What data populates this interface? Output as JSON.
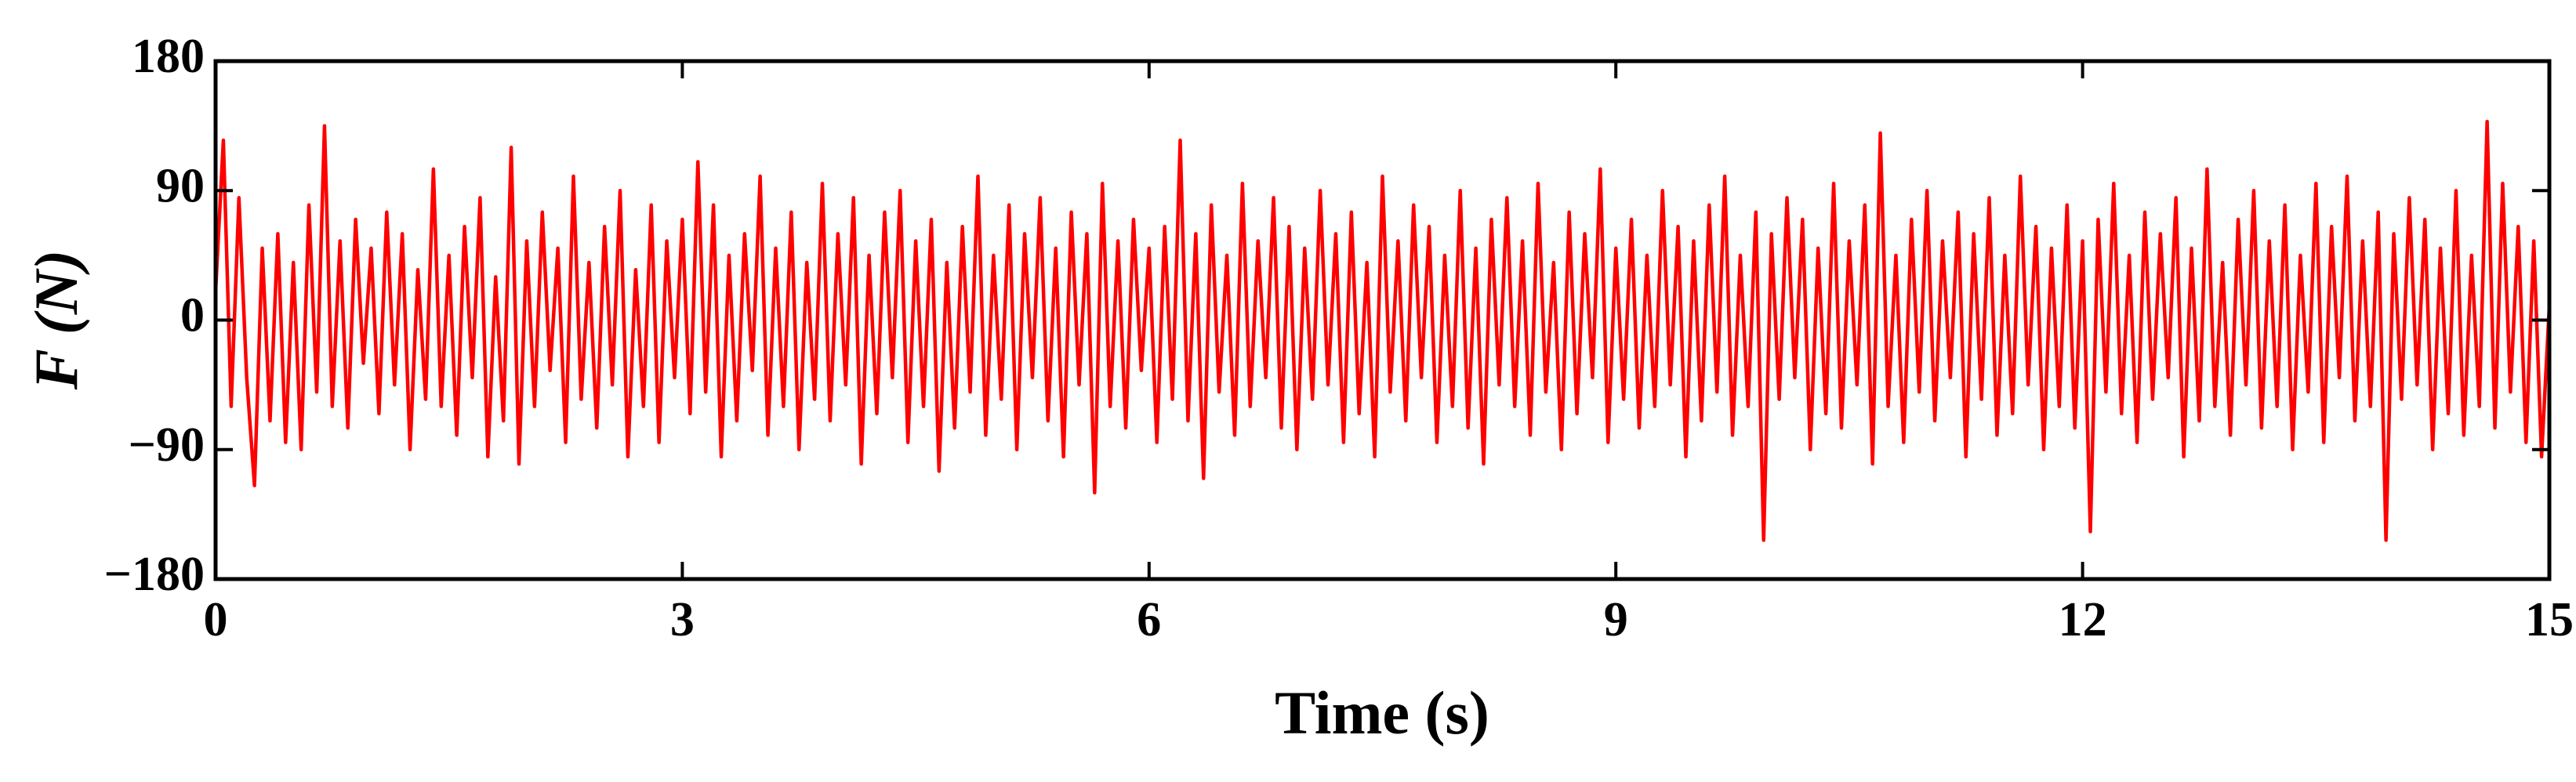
{
  "chart_data": {
    "type": "line",
    "xlabel": "Time (s)",
    "ylabel": "F (N)",
    "x": [
      0,
      0.05,
      0.1,
      0.15,
      0.2,
      0.25,
      0.3,
      0.35,
      0.4,
      0.45,
      0.5,
      0.55,
      0.6,
      0.65,
      0.7,
      0.75,
      0.8,
      0.85,
      0.9,
      0.95,
      1,
      1.05,
      1.1,
      1.15,
      1.2,
      1.25,
      1.3,
      1.35,
      1.4,
      1.45,
      1.5,
      1.55,
      1.6,
      1.65,
      1.7,
      1.75,
      1.8,
      1.85,
      1.9,
      1.95,
      2,
      2.05,
      2.1,
      2.15,
      2.2,
      2.25,
      2.3,
      2.35,
      2.4,
      2.45,
      2.5,
      2.55,
      2.6,
      2.65,
      2.7,
      2.75,
      2.8,
      2.85,
      2.9,
      2.95,
      3,
      3.05,
      3.1,
      3.15,
      3.2,
      3.25,
      3.3,
      3.35,
      3.4,
      3.45,
      3.5,
      3.55,
      3.6,
      3.65,
      3.7,
      3.75,
      3.8,
      3.85,
      3.9,
      3.95,
      4,
      4.05,
      4.1,
      4.15,
      4.2,
      4.25,
      4.3,
      4.35,
      4.4,
      4.45,
      4.5,
      4.55,
      4.6,
      4.65,
      4.7,
      4.75,
      4.8,
      4.85,
      4.9,
      4.95,
      5,
      5.05,
      5.1,
      5.15,
      5.2,
      5.25,
      5.3,
      5.35,
      5.4,
      5.45,
      5.5,
      5.55,
      5.6,
      5.65,
      5.7,
      5.75,
      5.8,
      5.85,
      5.9,
      5.95,
      6,
      6.05,
      6.1,
      6.15,
      6.2,
      6.25,
      6.3,
      6.35,
      6.4,
      6.45,
      6.5,
      6.55,
      6.6,
      6.65,
      6.7,
      6.75,
      6.8,
      6.85,
      6.9,
      6.95,
      7,
      7.05,
      7.1,
      7.15,
      7.2,
      7.25,
      7.3,
      7.35,
      7.4,
      7.45,
      7.5,
      7.55,
      7.6,
      7.65,
      7.7,
      7.75,
      7.8,
      7.85,
      7.9,
      7.95,
      8,
      8.05,
      8.1,
      8.15,
      8.2,
      8.25,
      8.3,
      8.35,
      8.4,
      8.45,
      8.5,
      8.55,
      8.6,
      8.65,
      8.7,
      8.75,
      8.8,
      8.85,
      8.9,
      8.95,
      9,
      9.05,
      9.1,
      9.15,
      9.2,
      9.25,
      9.3,
      9.35,
      9.4,
      9.45,
      9.5,
      9.55,
      9.6,
      9.65,
      9.7,
      9.75,
      9.8,
      9.85,
      9.9,
      9.95,
      10,
      10.05,
      10.1,
      10.15,
      10.2,
      10.25,
      10.3,
      10.35,
      10.4,
      10.45,
      10.5,
      10.55,
      10.6,
      10.65,
      10.7,
      10.75,
      10.8,
      10.85,
      10.9,
      10.95,
      11,
      11.05,
      11.1,
      11.15,
      11.2,
      11.25,
      11.3,
      11.35,
      11.4,
      11.45,
      11.5,
      11.55,
      11.6,
      11.65,
      11.7,
      11.75,
      11.8,
      11.85,
      11.9,
      11.95,
      12,
      12.05,
      12.1,
      12.15,
      12.2,
      12.25,
      12.3,
      12.35,
      12.4,
      12.45,
      12.5,
      12.55,
      12.6,
      12.65,
      12.7,
      12.75,
      12.8,
      12.85,
      12.9,
      12.95,
      13,
      13.05,
      13.1,
      13.15,
      13.2,
      13.25,
      13.3,
      13.35,
      13.4,
      13.45,
      13.5,
      13.55,
      13.6,
      13.65,
      13.7,
      13.75,
      13.8,
      13.85,
      13.9,
      13.95,
      14,
      14.05,
      14.1,
      14.15,
      14.2,
      14.25,
      14.3,
      14.35,
      14.4,
      14.45,
      14.5,
      14.55,
      14.6,
      14.65,
      14.7,
      14.75,
      14.8,
      14.85,
      14.9,
      14.95,
      15
    ],
    "series": [
      {
        "color": "#ff0000",
        "values": [
          20,
          125,
          -60,
          85,
          -40,
          -115,
          50,
          -70,
          60,
          -85,
          40,
          -90,
          80,
          -50,
          135,
          -60,
          55,
          -75,
          70,
          -30,
          50,
          -65,
          75,
          -45,
          60,
          -90,
          35,
          -55,
          105,
          -60,
          45,
          -80,
          65,
          -40,
          85,
          -95,
          30,
          -70,
          120,
          -100,
          55,
          -60,
          75,
          -35,
          50,
          -85,
          100,
          -55,
          40,
          -75,
          65,
          -45,
          90,
          -95,
          35,
          -60,
          80,
          -85,
          55,
          -40,
          70,
          -65,
          110,
          -50,
          80,
          -95,
          45,
          -70,
          60,
          -35,
          100,
          -80,
          50,
          -60,
          75,
          -90,
          40,
          -55,
          95,
          -70,
          60,
          -45,
          85,
          -100,
          45,
          -65,
          75,
          -40,
          90,
          -85,
          55,
          -60,
          70,
          -105,
          40,
          -75,
          65,
          -50,
          100,
          -80,
          45,
          -55,
          80,
          -90,
          60,
          -40,
          85,
          -70,
          50,
          -95,
          75,
          -45,
          60,
          -120,
          95,
          -60,
          55,
          -75,
          70,
          -35,
          50,
          -85,
          65,
          -55,
          125,
          -70,
          60,
          -110,
          80,
          -50,
          45,
          -80,
          95,
          -60,
          55,
          -40,
          85,
          -75,
          65,
          -90,
          50,
          -55,
          90,
          -45,
          60,
          -85,
          75,
          -65,
          40,
          -95,
          100,
          -50,
          55,
          -70,
          80,
          -40,
          65,
          -85,
          45,
          -60,
          90,
          -75,
          50,
          -100,
          70,
          -45,
          85,
          -60,
          55,
          -80,
          95,
          -50,
          40,
          -90,
          75,
          -65,
          60,
          -40,
          105,
          -85,
          50,
          -55,
          70,
          -75,
          45,
          -60,
          90,
          -45,
          65,
          -95,
          55,
          -70,
          80,
          -50,
          100,
          -80,
          45,
          -60,
          75,
          -153,
          60,
          -55,
          85,
          -40,
          70,
          -90,
          50,
          -65,
          95,
          -75,
          55,
          -45,
          80,
          -100,
          130,
          -60,
          45,
          -85,
          70,
          -50,
          90,
          -70,
          55,
          -40,
          75,
          -95,
          60,
          -55,
          85,
          -80,
          45,
          -65,
          100,
          -45,
          65,
          -90,
          50,
          -60,
          80,
          -75,
          55,
          -147,
          70,
          -50,
          95,
          -65,
          45,
          -85,
          75,
          -55,
          60,
          -40,
          85,
          -95,
          50,
          -70,
          105,
          -60,
          40,
          -80,
          70,
          -45,
          90,
          -75,
          55,
          -60,
          80,
          -90,
          45,
          -50,
          95,
          -85,
          65,
          -40,
          100,
          -70,
          55,
          -60,
          75,
          -153,
          60,
          -55,
          85,
          -45,
          70,
          -90,
          50,
          -65,
          90,
          -80,
          45,
          -60,
          138,
          -75,
          95,
          -50,
          65,
          -85,
          55,
          -95,
          10
        ]
      }
    ],
    "xlim": [
      0,
      15
    ],
    "xticks": [
      0,
      3,
      6,
      9,
      12,
      15
    ],
    "ylim": [
      -180,
      180
    ],
    "yticks": [
      {
        "value": -180,
        "label": "−180"
      },
      {
        "value": -90,
        "label": "−90"
      },
      0,
      90,
      180
    ],
    "grid": false
  }
}
